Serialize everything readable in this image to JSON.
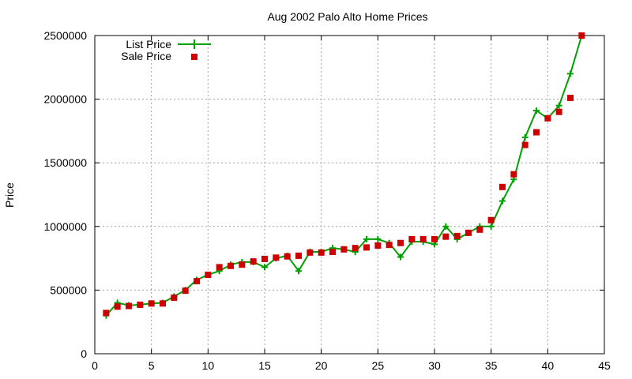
{
  "chart_data": {
    "type": "line",
    "title": "Aug 2002 Palo Alto Home Prices",
    "xlabel": "",
    "ylabel": "Price",
    "xlim": [
      0,
      45
    ],
    "ylim": [
      0,
      2500000
    ],
    "xticks": [
      0,
      5,
      10,
      15,
      20,
      25,
      30,
      35,
      40,
      45
    ],
    "yticks": [
      0,
      500000,
      1000000,
      1500000,
      2000000,
      2500000
    ],
    "grid": true,
    "legend_position": "top-left",
    "x": [
      1,
      2,
      3,
      4,
      5,
      6,
      7,
      8,
      9,
      10,
      11,
      12,
      13,
      14,
      15,
      16,
      17,
      18,
      19,
      20,
      21,
      22,
      23,
      24,
      25,
      26,
      27,
      28,
      29,
      30,
      31,
      32,
      33,
      34,
      35,
      36,
      37,
      38,
      39,
      40,
      41,
      42,
      43
    ],
    "series": [
      {
        "name": "List Price",
        "style": "line-plus",
        "color": "#00a000",
        "values": [
          300000,
          400000,
          380000,
          385000,
          395000,
          400000,
          450000,
          500000,
          580000,
          620000,
          650000,
          700000,
          720000,
          720000,
          680000,
          750000,
          770000,
          650000,
          800000,
          800000,
          830000,
          820000,
          800000,
          900000,
          900000,
          870000,
          760000,
          880000,
          880000,
          860000,
          1000000,
          900000,
          950000,
          1000000,
          1000000,
          1200000,
          1370000,
          1700000,
          1910000,
          1850000,
          1950000,
          2200000,
          2500000
        ]
      },
      {
        "name": "Sale Price",
        "style": "points-square",
        "color": "#cc0000",
        "values": [
          320000,
          370000,
          375000,
          385000,
          395000,
          395000,
          440000,
          495000,
          570000,
          620000,
          680000,
          690000,
          700000,
          725000,
          745000,
          755000,
          765000,
          770000,
          795000,
          795000,
          800000,
          820000,
          830000,
          835000,
          850000,
          855000,
          870000,
          900000,
          900000,
          900000,
          920000,
          925000,
          950000,
          975000,
          1050000,
          1310000,
          1410000,
          1640000,
          1740000,
          1850000,
          1900000,
          2010000,
          2500000
        ]
      }
    ]
  }
}
